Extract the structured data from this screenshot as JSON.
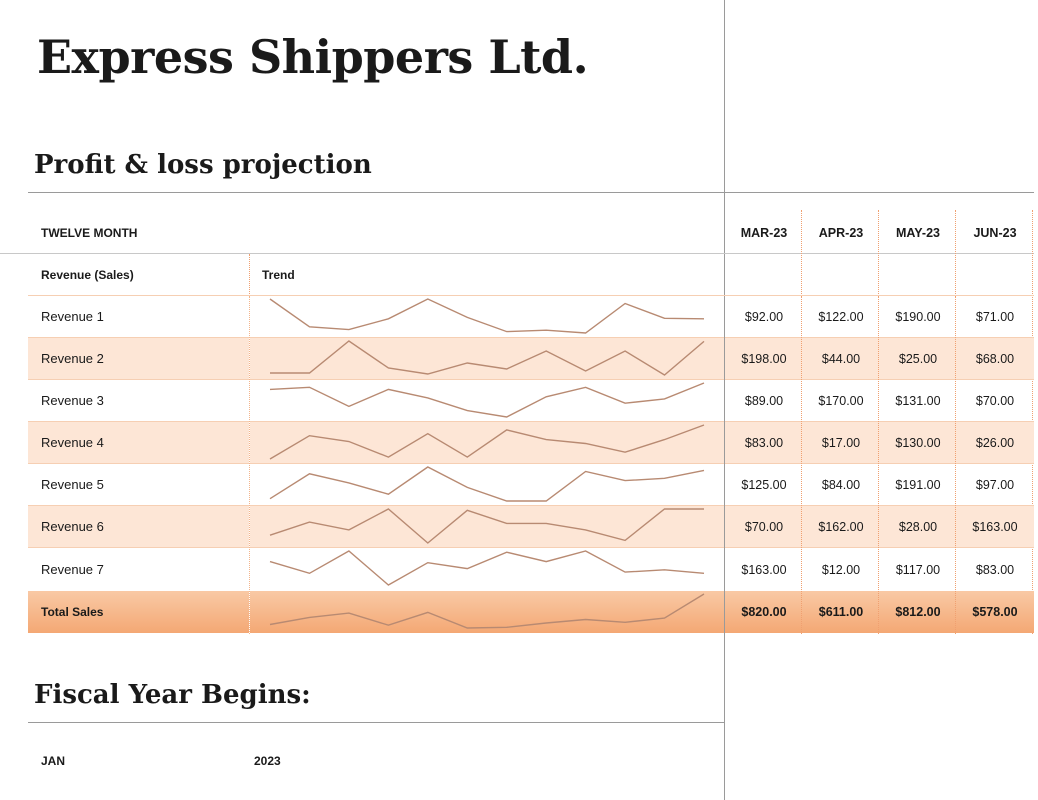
{
  "header": {
    "company": "Express Shippers Ltd.",
    "subtitle": "Profit & loss projection"
  },
  "table": {
    "period_label": "TWELVE MONTH",
    "months": [
      "MAR-23",
      "APR-23",
      "MAY-23",
      "JUN-23"
    ],
    "col_revenue": "Revenue (Sales)",
    "col_trend": "Trend",
    "rows": [
      {
        "label": "Revenue 1",
        "values": [
          "$92.00",
          "$122.00",
          "$190.00",
          "$71.00"
        ],
        "trend": [
          190,
          92,
          82,
          120,
          190,
          125,
          75,
          80,
          70,
          174,
          122,
          120
        ]
      },
      {
        "label": "Revenue 2",
        "values": [
          "$198.00",
          "$44.00",
          "$25.00",
          "$68.00"
        ],
        "trend": [
          40,
          40,
          200,
          65,
          35,
          90,
          60,
          150,
          50,
          150,
          30,
          198
        ]
      },
      {
        "label": "Revenue 3",
        "values": [
          "$89.00",
          "$170.00",
          "$131.00",
          "$70.00"
        ],
        "trend": [
          160,
          170,
          80,
          160,
          120,
          60,
          30,
          125,
          170,
          95,
          115,
          190
        ]
      },
      {
        "label": "Revenue 4",
        "values": [
          "$83.00",
          "$17.00",
          "$130.00",
          "$26.00"
        ],
        "trend": [
          20,
          140,
          110,
          30,
          150,
          30,
          170,
          120,
          100,
          55,
          120,
          195
        ]
      },
      {
        "label": "Revenue 5",
        "values": [
          "$125.00",
          "$84.00",
          "$191.00",
          "$97.00"
        ],
        "trend": [
          60,
          170,
          130,
          80,
          200,
          110,
          50,
          50,
          180,
          140,
          150,
          185
        ]
      },
      {
        "label": "Revenue 6",
        "values": [
          "$70.00",
          "$162.00",
          "$28.00",
          "$163.00"
        ],
        "trend": [
          60,
          110,
          80,
          160,
          30,
          155,
          105,
          105,
          80,
          40,
          160,
          160
        ]
      },
      {
        "label": "Revenue 7",
        "values": [
          "$163.00",
          "$12.00",
          "$117.00",
          "$83.00"
        ],
        "trend": [
          140,
          90,
          185,
          40,
          135,
          110,
          180,
          140,
          185,
          95,
          105,
          90
        ]
      }
    ],
    "total": {
      "label": "Total Sales",
      "values": [
        "$820.00",
        "$611.00",
        "$812.00",
        "$578.00"
      ],
      "trend": [
        620,
        720,
        780,
        610,
        790,
        570,
        580,
        640,
        690,
        650,
        710,
        1050
      ]
    }
  },
  "fiscal": {
    "title": "Fiscal Year Begins:",
    "month": "JAN",
    "year": "2023"
  }
}
